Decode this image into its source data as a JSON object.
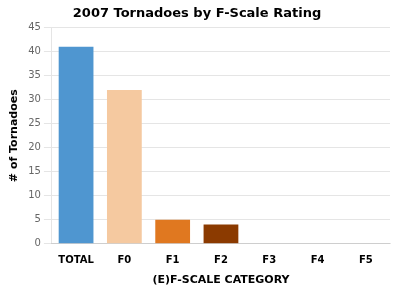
{
  "chart_data": {
    "type": "bar",
    "title": "2007 Tornadoes by F-Scale Rating",
    "categories": [
      "TOTAL",
      "F0",
      "F1",
      "F2",
      "F3",
      "F4",
      "F5"
    ],
    "values": [
      41,
      32,
      5,
      4,
      0,
      0,
      0
    ],
    "colors": [
      "#4f96d0",
      "#f5c9a0",
      "#e07820",
      "#8b3a00",
      "#888888",
      "#888888",
      "#888888"
    ],
    "xlabel": "(E)F-SCALE CATEGORY",
    "ylabel": "# of Tornadoes",
    "ylim": [
      0,
      45
    ],
    "yticks": [
      0,
      5,
      10,
      15,
      20,
      25,
      30,
      35,
      40,
      45
    ],
    "grid": true
  }
}
